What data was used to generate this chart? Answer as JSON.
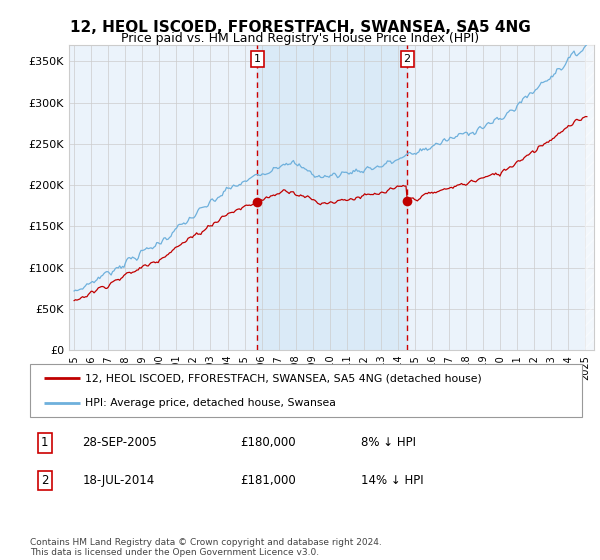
{
  "title": "12, HEOL ISCOED, FFORESTFACH, SWANSEA, SA5 4NG",
  "subtitle": "Price paid vs. HM Land Registry's House Price Index (HPI)",
  "ylim": [
    0,
    370000
  ],
  "yticks": [
    0,
    50000,
    100000,
    150000,
    200000,
    250000,
    300000,
    350000
  ],
  "ytick_labels": [
    "£0",
    "£50K",
    "£100K",
    "£150K",
    "£200K",
    "£250K",
    "£300K",
    "£350K"
  ],
  "hpi_color": "#6EB0DC",
  "price_color": "#C00000",
  "shade_color": "#DAEAF7",
  "sale1_date": 2005.75,
  "sale1_price": 180000,
  "sale2_date": 2014.54,
  "sale2_price": 181000,
  "legend_line1": "12, HEOL ISCOED, FFORESTFACH, SWANSEA, SA5 4NG (detached house)",
  "legend_line2": "HPI: Average price, detached house, Swansea",
  "table_row1": [
    "1",
    "28-SEP-2005",
    "£180,000",
    "8% ↓ HPI"
  ],
  "table_row2": [
    "2",
    "18-JUL-2014",
    "£181,000",
    "14% ↓ HPI"
  ],
  "footnote": "Contains HM Land Registry data © Crown copyright and database right 2024.\nThis data is licensed under the Open Government Licence v3.0.",
  "bg_color": "#EBF3FB",
  "grid_color": "#CCCCCC",
  "title_fontsize": 11,
  "subtitle_fontsize": 9,
  "xlim_left": 1994.7,
  "xlim_right": 2025.5
}
